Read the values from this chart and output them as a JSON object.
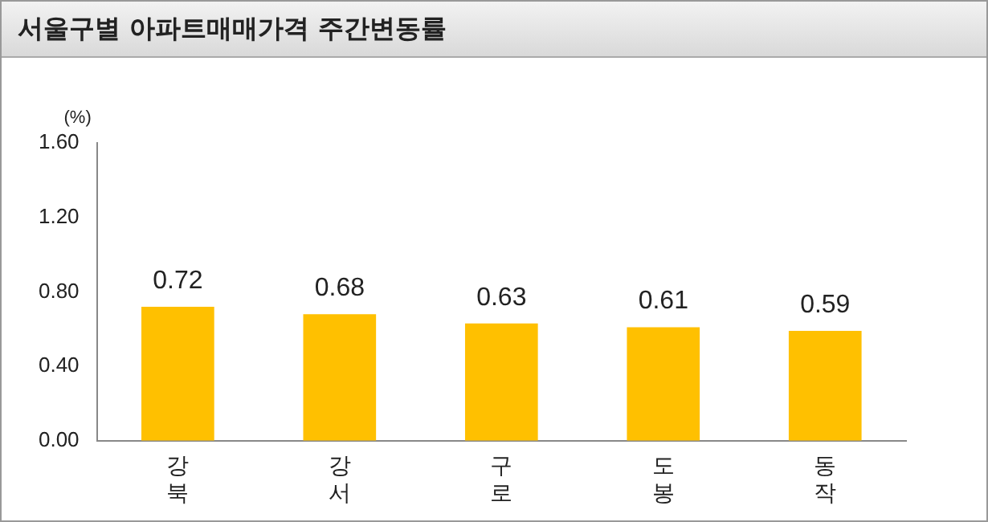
{
  "chart_data": {
    "type": "bar",
    "title": "서울구별 아파트매매가격 주간변동률",
    "ylabel": "(%)",
    "categories": [
      "강북",
      "강서",
      "구로",
      "도봉",
      "동작"
    ],
    "values": [
      0.72,
      0.68,
      0.63,
      0.61,
      0.59
    ],
    "color": "#ffc000",
    "ylim": [
      0,
      1.6
    ],
    "yticks": [
      {
        "value": 0,
        "label": "0.00"
      },
      {
        "value": 0.4,
        "label": "0.40"
      },
      {
        "value": 0.8,
        "label": "0.80"
      },
      {
        "value": 1.2,
        "label": "1.20"
      },
      {
        "value": 1.6,
        "label": "1.60"
      }
    ],
    "grid": false,
    "legend": false,
    "data_labels": true
  }
}
